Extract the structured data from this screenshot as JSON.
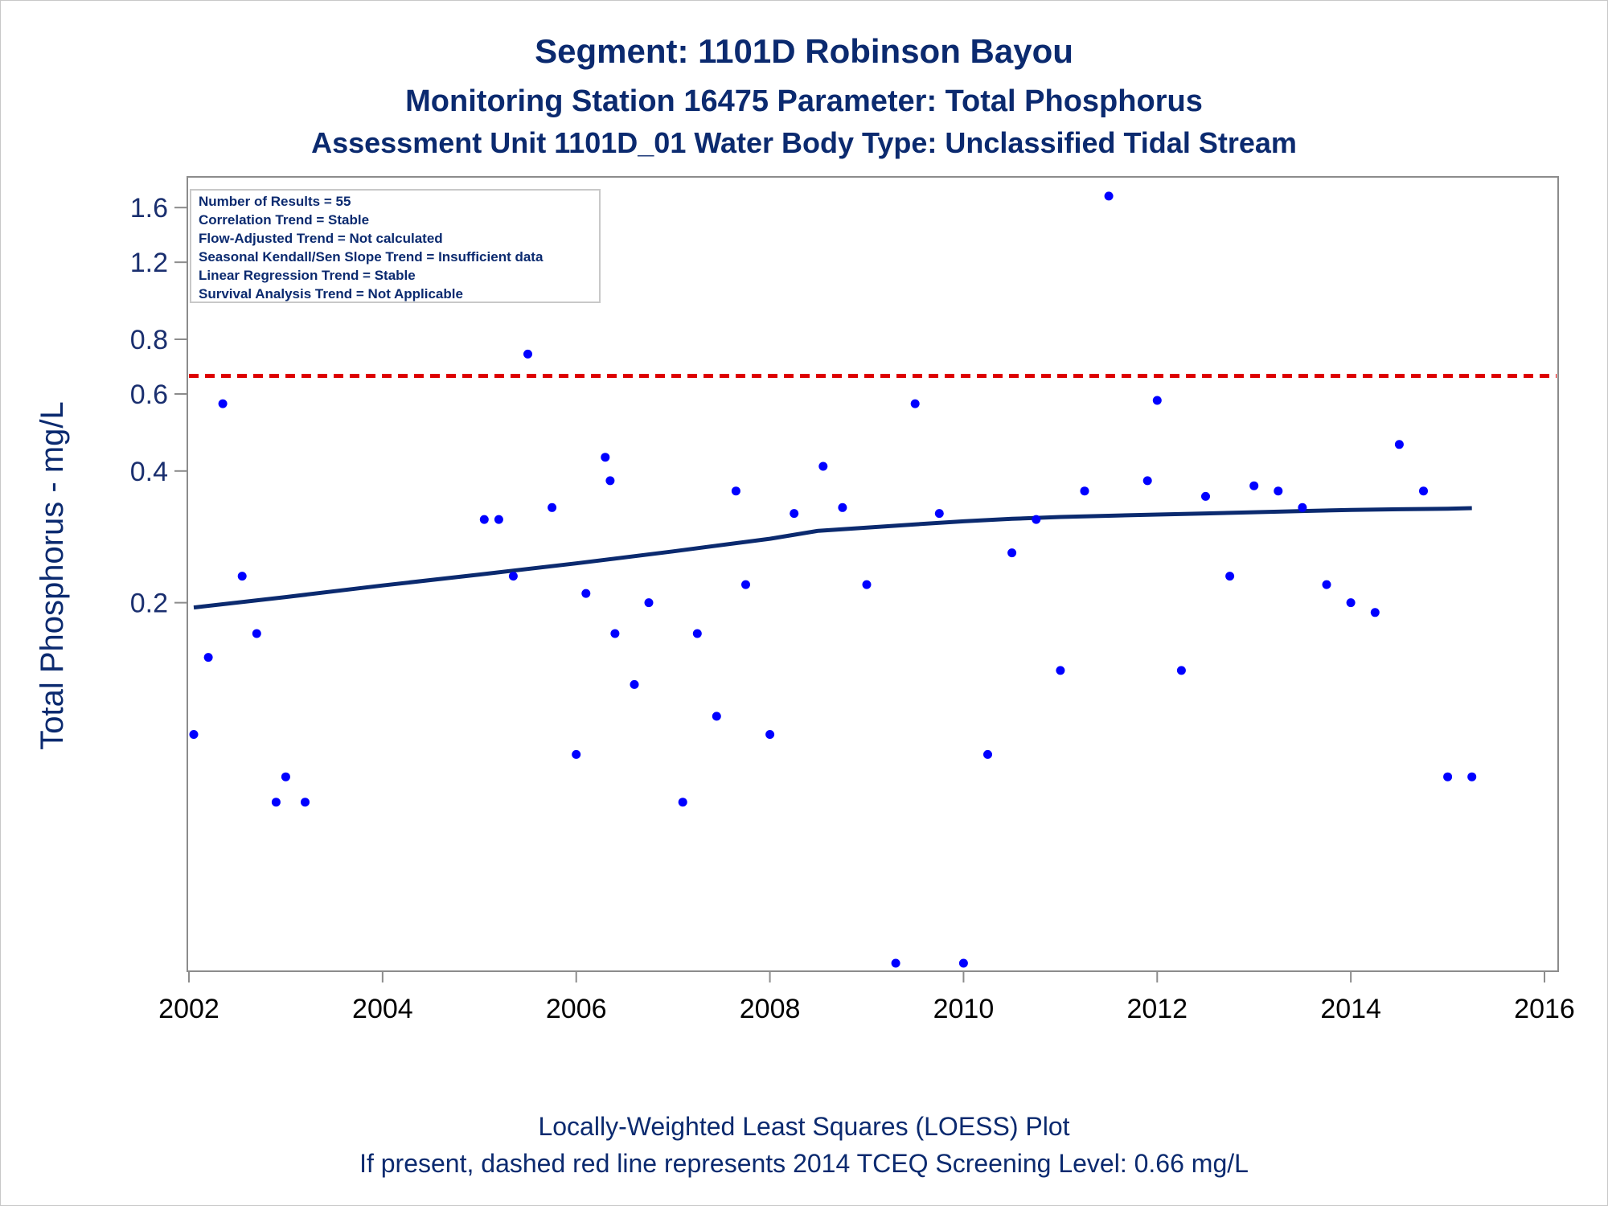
{
  "chart_data": {
    "type": "scatter",
    "title_lines": [
      "Segment: 1101D  Robinson Bayou",
      "Monitoring Station 16475 Parameter: Total Phosphorus",
      "Assessment Unit 1101D_01   Water Body Type: Unclassified Tidal Stream"
    ],
    "ylabel": "Total Phosphorus - mg/L",
    "xlabel": "",
    "y_scale": "log",
    "x_ticks": [
      "2002",
      "2004",
      "2006",
      "2008",
      "2010",
      "2012",
      "2014",
      "2016"
    ],
    "y_ticks": [
      "0.2",
      "0.4",
      "0.6",
      "0.8",
      "1.2",
      "1.6"
    ],
    "xlim": [
      2002,
      2016
    ],
    "ylim": [
      0.03,
      1.75
    ],
    "grid": false,
    "stats_box": [
      "Number of Results = 55",
      "Correlation Trend = Stable",
      "Flow-Adjusted Trend = Not calculated",
      "Seasonal Kendall/Sen Slope Trend = Insufficient data",
      "Linear Regression Trend = Stable",
      "Survival Analysis Trend = Not Applicable"
    ],
    "footnotes": [
      "Locally-Weighted Least Squares (LOESS) Plot",
      "If present, dashed red line represents 2014 TCEQ Screening Level: 0.66 mg/L"
    ],
    "screening_level": 0.66,
    "points": [
      {
        "x": 2002.05,
        "y": 0.1
      },
      {
        "x": 2002.2,
        "y": 0.15
      },
      {
        "x": 2002.35,
        "y": 0.57
      },
      {
        "x": 2002.55,
        "y": 0.23
      },
      {
        "x": 2002.7,
        "y": 0.17
      },
      {
        "x": 2002.9,
        "y": 0.07
      },
      {
        "x": 2003.0,
        "y": 0.08
      },
      {
        "x": 2003.2,
        "y": 0.07
      },
      {
        "x": 2005.05,
        "y": 0.31
      },
      {
        "x": 2005.2,
        "y": 0.31
      },
      {
        "x": 2005.35,
        "y": 0.23
      },
      {
        "x": 2005.5,
        "y": 0.74
      },
      {
        "x": 2005.75,
        "y": 0.33
      },
      {
        "x": 2006.0,
        "y": 0.09
      },
      {
        "x": 2006.1,
        "y": 0.21
      },
      {
        "x": 2006.3,
        "y": 0.43
      },
      {
        "x": 2006.35,
        "y": 0.38
      },
      {
        "x": 2006.4,
        "y": 0.17
      },
      {
        "x": 2006.6,
        "y": 0.13
      },
      {
        "x": 2006.75,
        "y": 0.2
      },
      {
        "x": 2007.1,
        "y": 0.07
      },
      {
        "x": 2007.25,
        "y": 0.17
      },
      {
        "x": 2007.45,
        "y": 0.11
      },
      {
        "x": 2007.65,
        "y": 0.36
      },
      {
        "x": 2007.75,
        "y": 0.22
      },
      {
        "x": 2008.0,
        "y": 0.1
      },
      {
        "x": 2008.25,
        "y": 0.32
      },
      {
        "x": 2008.55,
        "y": 0.41
      },
      {
        "x": 2008.75,
        "y": 0.33
      },
      {
        "x": 2009.0,
        "y": 0.22
      },
      {
        "x": 2009.3,
        "y": 0.03
      },
      {
        "x": 2009.5,
        "y": 0.57
      },
      {
        "x": 2009.75,
        "y": 0.32
      },
      {
        "x": 2010.0,
        "y": 0.03
      },
      {
        "x": 2010.25,
        "y": 0.09
      },
      {
        "x": 2010.5,
        "y": 0.26
      },
      {
        "x": 2010.75,
        "y": 0.31
      },
      {
        "x": 2011.0,
        "y": 0.14
      },
      {
        "x": 2011.25,
        "y": 0.36
      },
      {
        "x": 2011.5,
        "y": 1.7
      },
      {
        "x": 2011.9,
        "y": 0.38
      },
      {
        "x": 2012.0,
        "y": 0.58
      },
      {
        "x": 2012.25,
        "y": 0.14
      },
      {
        "x": 2012.5,
        "y": 0.35
      },
      {
        "x": 2012.75,
        "y": 0.23
      },
      {
        "x": 2013.0,
        "y": 0.37
      },
      {
        "x": 2013.25,
        "y": 0.36
      },
      {
        "x": 2013.5,
        "y": 0.33
      },
      {
        "x": 2013.75,
        "y": 0.22
      },
      {
        "x": 2014.0,
        "y": 0.2
      },
      {
        "x": 2014.25,
        "y": 0.19
      },
      {
        "x": 2014.5,
        "y": 0.46
      },
      {
        "x": 2014.75,
        "y": 0.36
      },
      {
        "x": 2015.0,
        "y": 0.08
      },
      {
        "x": 2015.25,
        "y": 0.08
      }
    ],
    "loess_line": [
      {
        "x": 2002.05,
        "y": 0.195
      },
      {
        "x": 2003.0,
        "y": 0.206
      },
      {
        "x": 2004.0,
        "y": 0.219
      },
      {
        "x": 2005.0,
        "y": 0.232
      },
      {
        "x": 2006.0,
        "y": 0.246
      },
      {
        "x": 2007.0,
        "y": 0.262
      },
      {
        "x": 2008.0,
        "y": 0.28
      },
      {
        "x": 2008.5,
        "y": 0.292
      },
      {
        "x": 2009.0,
        "y": 0.297
      },
      {
        "x": 2009.5,
        "y": 0.302
      },
      {
        "x": 2010.0,
        "y": 0.307
      },
      {
        "x": 2010.5,
        "y": 0.311
      },
      {
        "x": 2011.0,
        "y": 0.314
      },
      {
        "x": 2011.5,
        "y": 0.316
      },
      {
        "x": 2012.0,
        "y": 0.318
      },
      {
        "x": 2012.5,
        "y": 0.32
      },
      {
        "x": 2013.0,
        "y": 0.322
      },
      {
        "x": 2013.5,
        "y": 0.324
      },
      {
        "x": 2014.0,
        "y": 0.326
      },
      {
        "x": 2014.5,
        "y": 0.327
      },
      {
        "x": 2015.0,
        "y": 0.328
      },
      {
        "x": 2015.25,
        "y": 0.329
      }
    ],
    "colors": {
      "points": "#0000ff",
      "loess": "#0b2a6f",
      "screening_line": "#dd0000",
      "text": "#0b2a6f",
      "axis": "#8c8c8c"
    }
  }
}
